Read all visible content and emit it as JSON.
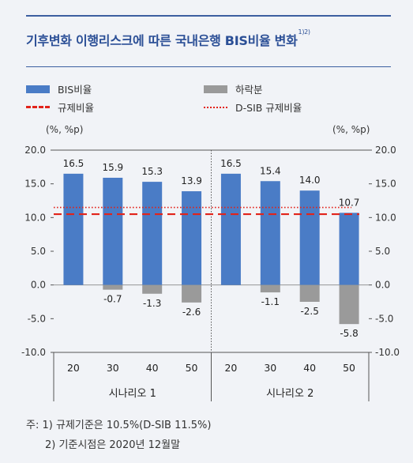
{
  "title": "기후변화 이행리스크에 따른 국내은행 BIS비율 변화",
  "title_sup": "1)2)",
  "legend": {
    "bis": "BIS비율",
    "decline": "하락분",
    "reg": "규제비율",
    "dsib": "D-SIB 규제비율"
  },
  "unit_left": "(%, %p)",
  "unit_right": "(%, %p)",
  "notes": {
    "line1": "주: 1) 규제기준은 10.5%(D-SIB 11.5%)",
    "line2": "2) 기준시점은 2020년 12월말"
  },
  "colors": {
    "bis": "#4a7cc6",
    "decline": "#9a9a9a",
    "reg": "#e2231a",
    "title": "#2b4f96"
  },
  "chart_data": {
    "type": "bar",
    "categories": [
      "20",
      "30",
      "40",
      "50",
      "20",
      "30",
      "40",
      "50"
    ],
    "groups": [
      {
        "label": "시나리오 1",
        "categories": [
          "20",
          "30",
          "40",
          "50"
        ]
      },
      {
        "label": "시나리오 2",
        "categories": [
          "20",
          "30",
          "40",
          "50"
        ]
      }
    ],
    "series": [
      {
        "name": "BIS비율",
        "values": [
          16.5,
          15.9,
          15.3,
          13.9,
          16.5,
          15.4,
          14.0,
          10.7
        ]
      },
      {
        "name": "하락분",
        "values": [
          0,
          -0.7,
          -1.3,
          -2.6,
          0,
          -1.1,
          -2.5,
          -5.8
        ]
      }
    ],
    "bis_labels": [
      "16.5",
      "15.9",
      "15.3",
      "13.9",
      "16.5",
      "15.4",
      "14.0",
      "10.7"
    ],
    "decline_labels": [
      "",
      "-0.7",
      "-1.3",
      "-2.6",
      "",
      "-1.1",
      "-2.5",
      "-5.8"
    ],
    "reference_lines": [
      {
        "name": "규제비율",
        "value": 10.5
      },
      {
        "name": "D-SIB 규제비율",
        "value": 11.5
      }
    ],
    "yticks": [
      "20.0",
      "15.0",
      "10.0",
      "5.0",
      "0.0",
      "-5.0",
      "-10.0"
    ],
    "ylim": [
      -10,
      20
    ]
  }
}
